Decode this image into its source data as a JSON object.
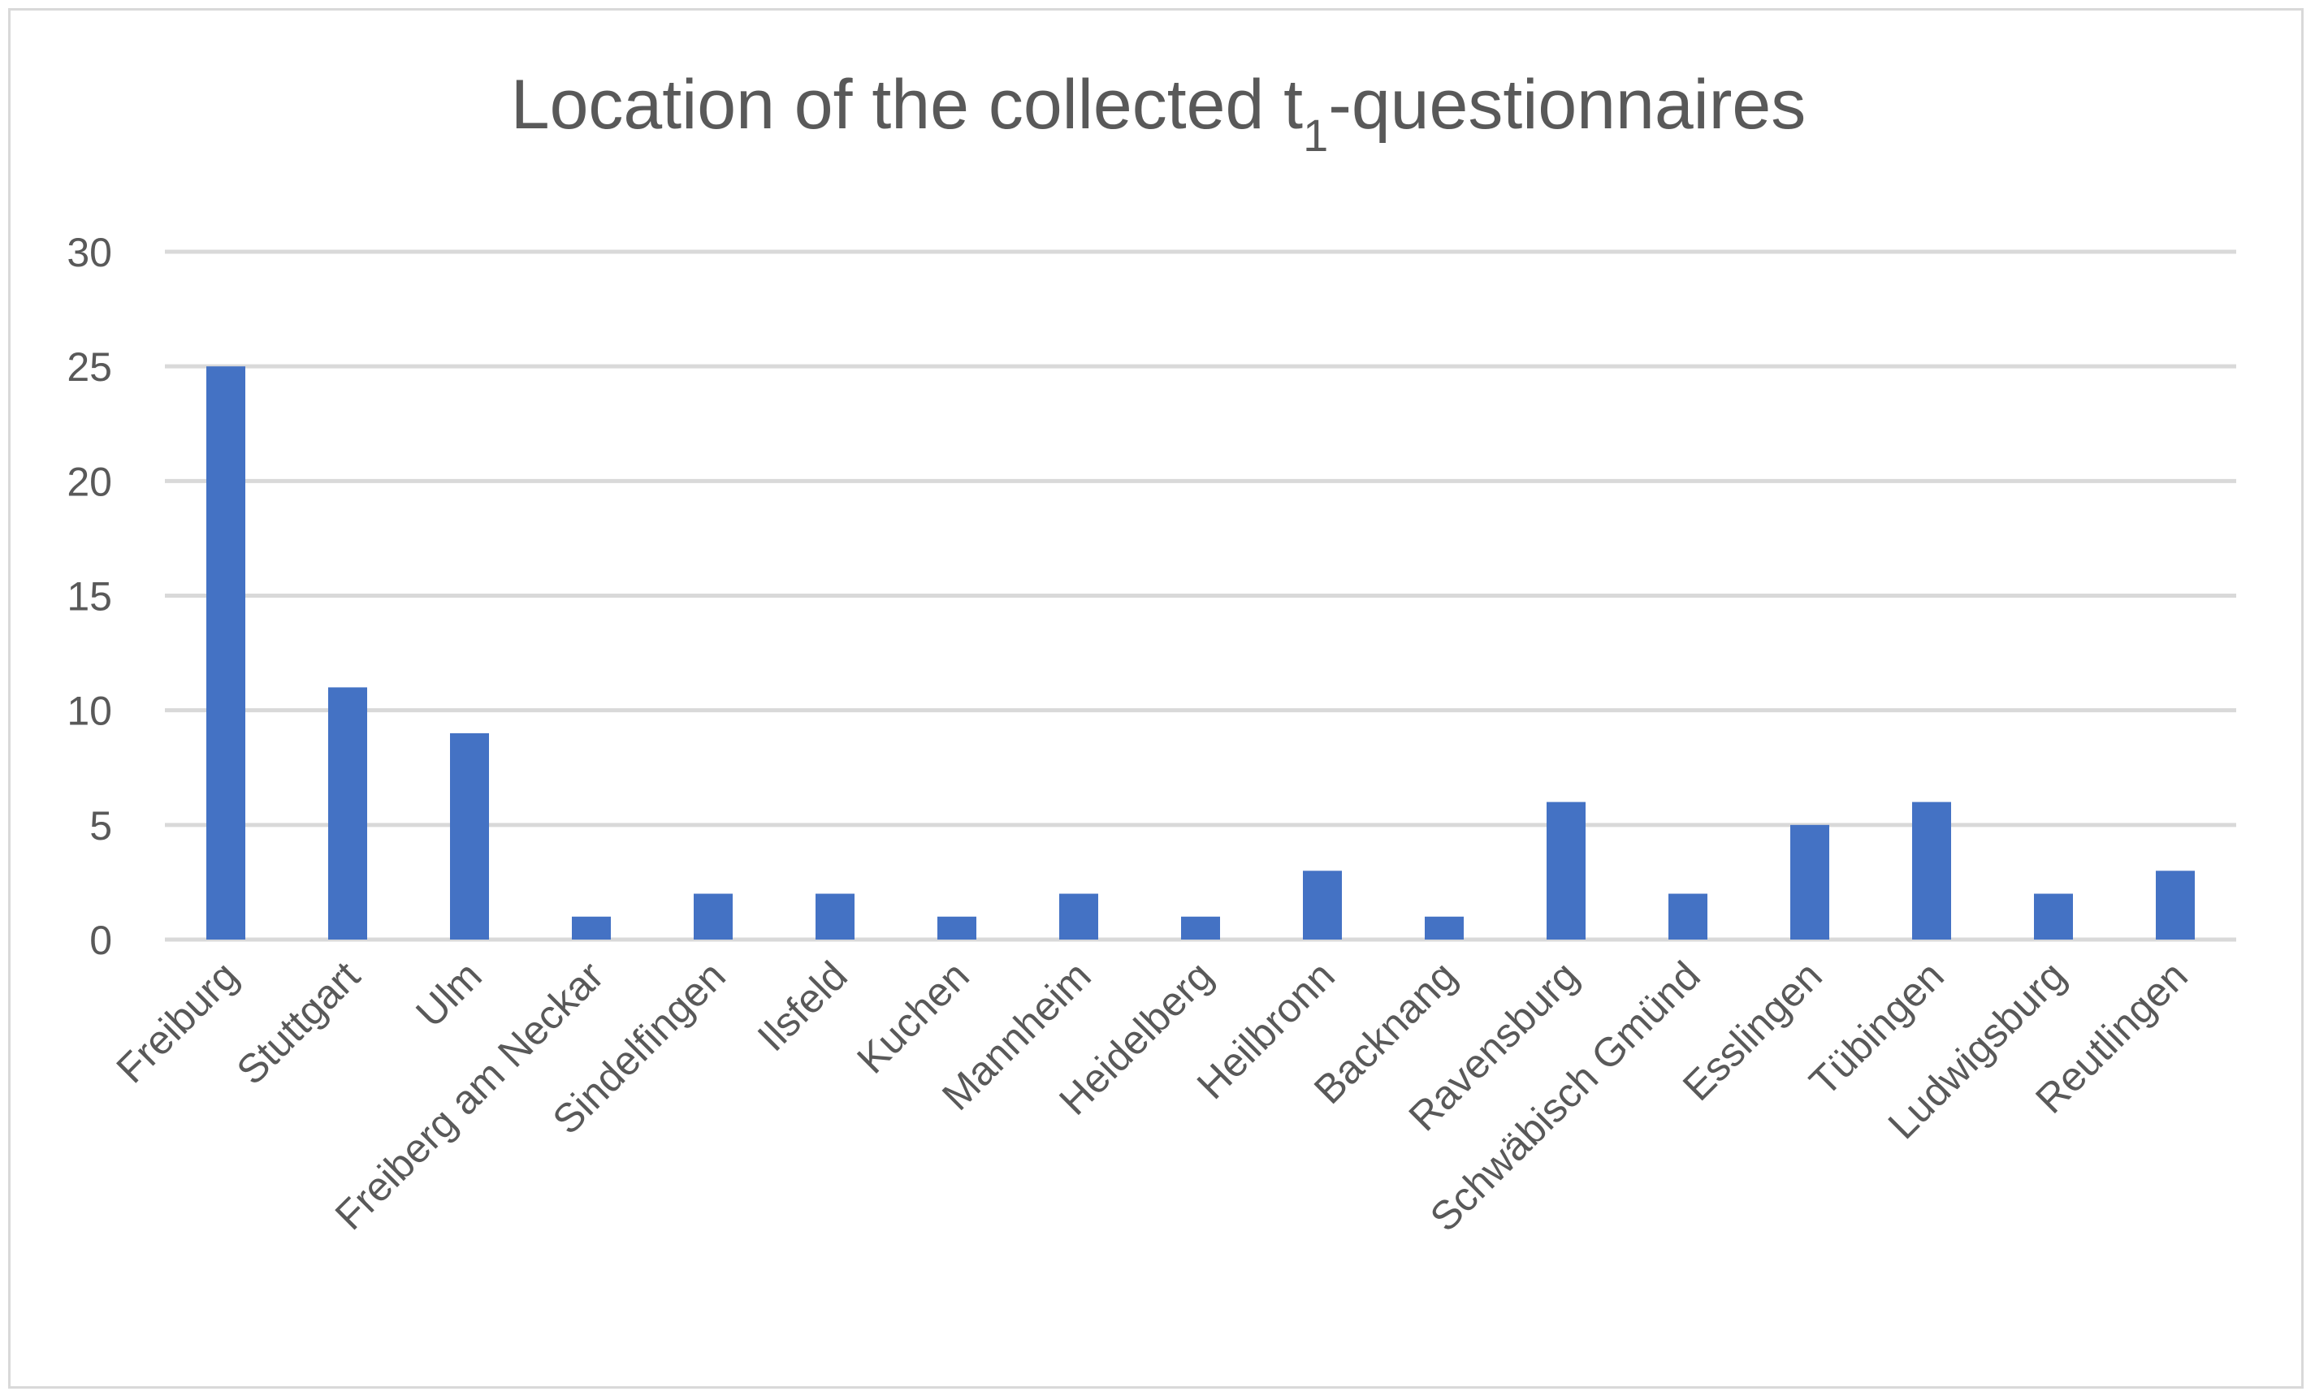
{
  "chart_data": {
    "type": "bar",
    "title": "Location of the collected t",
    "title_subscript": "1",
    "title_suffix": "-questionnaires",
    "xlabel": "",
    "ylabel": "",
    "ylim": [
      0,
      30
    ],
    "yticks": [
      0,
      5,
      10,
      15,
      20,
      25,
      30
    ],
    "grid": true,
    "legend": "none",
    "bar_color": "#4472c4",
    "categories": [
      "Freiburg",
      "Stuttgart",
      "Ulm",
      "Freiberg am Neckar",
      "Sindelfingen",
      "Ilsfeld",
      "Kuchen",
      "Mannheim",
      "Heidelberg",
      "Heilbronn",
      "Backnang",
      "Ravensburg",
      "Schwäbisch Gmünd",
      "Esslingen",
      "Tübingen",
      "Ludwigsburg",
      "Reutlingen"
    ],
    "values": [
      25,
      11,
      9,
      1,
      2,
      2,
      1,
      2,
      1,
      3,
      1,
      6,
      2,
      5,
      6,
      2,
      3
    ]
  }
}
